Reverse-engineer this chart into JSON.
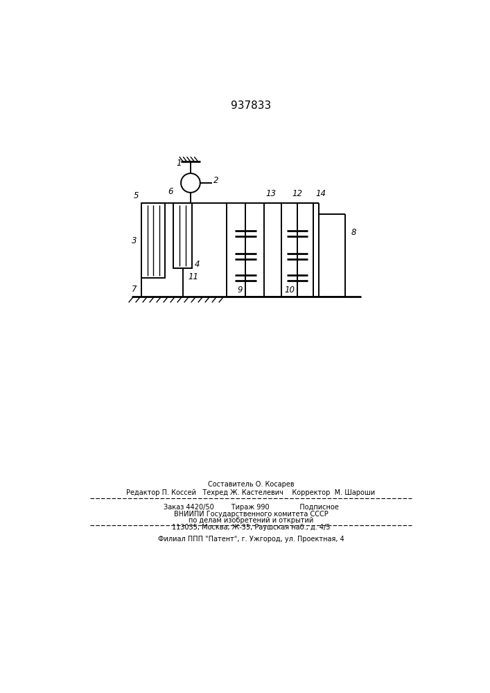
{
  "patent_number": "937833",
  "bg_color": "#ffffff",
  "line_color": "#000000",
  "footer_text_1": "Составитель О. Косарев",
  "footer_text_2": "Редактор П. Коссей   Техред Ж. Кастелевич    Корректор  М. Шароши",
  "footer_text_3": "Заказ 4420/50        Тираж 990              Подписное",
  "footer_text_4": "ВНИИПИ Государственного комитета СССР",
  "footer_text_5": "по делам изобретений и открытий",
  "footer_text_6": "113035, Москва, Ж-35, Раушская наб., д. 4/5",
  "footer_text_7": "Филиал ППП \"Патент\", г. Ужгород, ул. Проектная, 4"
}
